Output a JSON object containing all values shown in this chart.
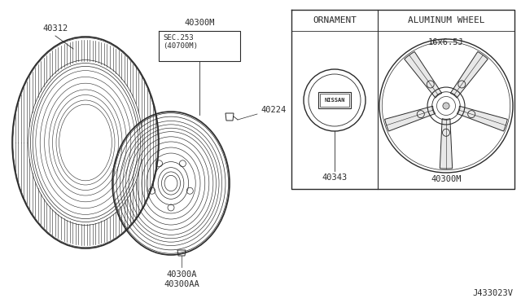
{
  "bg_color": "#ffffff",
  "line_color": "#2a2a2a",
  "diagram_code": "J433023V",
  "labels": {
    "tire_part": "40312",
    "wheel_assembly": "40300M",
    "valve": "40224",
    "sec_ref": "SEC.253\n(40700M)",
    "lug_nut_bottom": "40300A\n40300AA",
    "ornament_title": "ORNAMENT",
    "ornament_part": "40343",
    "alum_title": "ALUMINUM WHEEL",
    "alum_size": "16x6.5J",
    "alum_part": "40300M"
  },
  "figsize": [
    6.4,
    3.72
  ],
  "dpi": 100
}
